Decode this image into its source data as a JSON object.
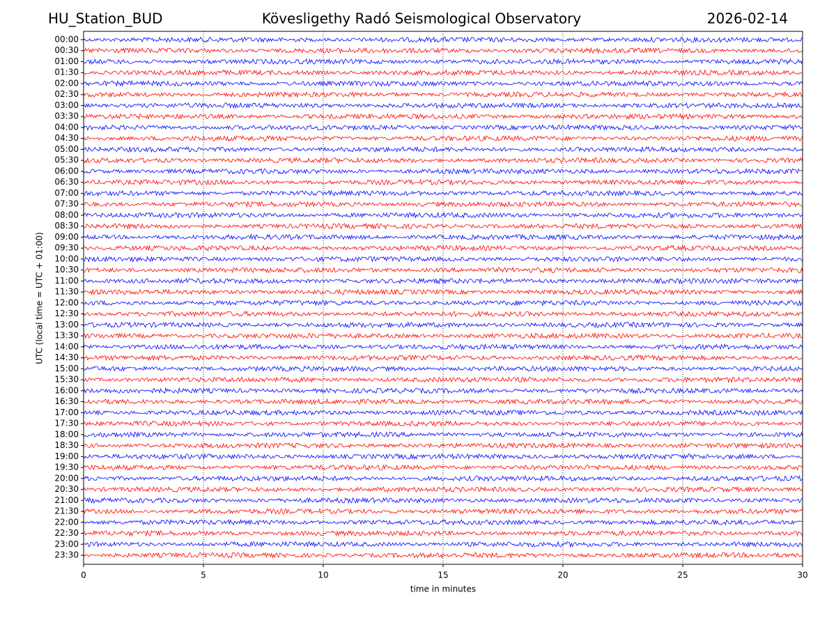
{
  "chart_data": {
    "type": "helicorder",
    "station": "HU_Station_BUD",
    "title": "Kövesligethy Radó Seismological Observatory",
    "date": "2026-02-14",
    "xlabel": "time in minutes",
    "ylabel": "UTC (local time = UTC + 01:00)",
    "categories": [
      "00:00",
      "00:30",
      "01:00",
      "01:30",
      "02:00",
      "02:30",
      "03:00",
      "03:30",
      "04:00",
      "04:30",
      "05:00",
      "05:30",
      "06:00",
      "06:30",
      "07:00",
      "07:30",
      "08:00",
      "08:30",
      "09:00",
      "09:30",
      "10:00",
      "10:30",
      "11:00",
      "11:30",
      "12:00",
      "12:30",
      "13:00",
      "13:30",
      "14:00",
      "14:30",
      "15:00",
      "15:30",
      "16:00",
      "16:30",
      "17:00",
      "17:30",
      "18:00",
      "18:30",
      "19:00",
      "19:30",
      "20:00",
      "20:30",
      "21:00",
      "21:30",
      "22:00",
      "22:30",
      "23:00",
      "23:30"
    ],
    "colors": [
      "#0000ff",
      "#ff0000"
    ],
    "xlim": [
      0,
      30
    ],
    "xticks": [
      0,
      5,
      10,
      15,
      20,
      25,
      30
    ],
    "grid": true
  }
}
